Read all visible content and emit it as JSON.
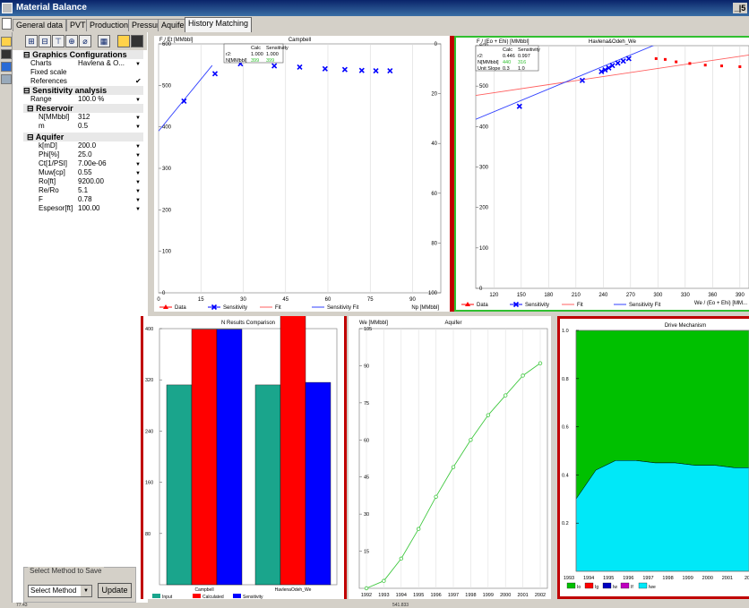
{
  "window": {
    "title": "Material Balance",
    "controls": "_|5"
  },
  "tabs": [
    "General data",
    "PVT",
    "Production",
    "Pressure",
    "Aquifer",
    "History Matching"
  ],
  "active_tab": 5,
  "toolbar_icons": [
    "stack-icon",
    "hierarchy-icon",
    "tree-icon",
    "network-icon",
    "eraser-icon",
    "gap",
    "grid-icon",
    "open-folder-icon",
    "save-icon"
  ],
  "left_toolbar_icons": [
    "new-icon",
    "open-icon",
    "save-icon",
    "monitor-icon",
    "network-icon"
  ],
  "properties": {
    "graphics_section": "Graphics Configurations",
    "charts_label": "Charts",
    "charts_value": "Havlena & O...",
    "fixed_scale_label": "Fixed scale",
    "references_label": "References",
    "sensitivity_section": "Sensitivity analysis",
    "range_label": "Range",
    "range_value": "100.0 %",
    "reservoir_section": "Reservoir",
    "reservoir": [
      {
        "k": "N[MMbbl]",
        "v": "312"
      },
      {
        "k": "m",
        "v": "0.5"
      }
    ],
    "aquifer_section": "Aquifer",
    "aquifer": [
      {
        "k": "k[mD]",
        "v": "200.0"
      },
      {
        "k": "Phi[%]",
        "v": "25.0"
      },
      {
        "k": "Ct[1/PSI]",
        "v": "7.00e-06"
      },
      {
        "k": "Muw[cp]",
        "v": "0.55"
      },
      {
        "k": "Ro[ft]",
        "v": "9200.00"
      },
      {
        "k": "Re/Ro",
        "v": "5.1"
      },
      {
        "k": "F",
        "v": "0.78"
      },
      {
        "k": "Espesor[ft]",
        "v": "100.00"
      }
    ]
  },
  "save": {
    "label": "Select Method to Save",
    "select_value": "Select Method",
    "button": "Update"
  },
  "status": {
    "left": "77.43",
    "mid": "541.833"
  },
  "chart_data": [
    {
      "type": "scatter",
      "title": "Campbell",
      "ylabel": "F / Et [MMbbl]",
      "xlabel": "Np [MMbbl]",
      "xlim": [
        0,
        100
      ],
      "ylim": [
        0,
        600
      ],
      "y2lim": [
        100,
        0
      ],
      "x_ticks": [
        "0",
        "15",
        "30",
        "45",
        "60",
        "75",
        "90"
      ],
      "y_ticks": [
        "0",
        "100",
        "200",
        "300",
        "400",
        "500",
        "600"
      ],
      "y2_ticks": [
        "100",
        "80",
        "60",
        "40",
        "20",
        "0"
      ],
      "stats": {
        "header": [
          "",
          "Calc",
          "Sensitivity"
        ],
        "rows": [
          [
            "r2:",
            "1.000",
            "1.000"
          ],
          [
            "N[MMbbl]",
            "399",
            "399"
          ]
        ]
      },
      "series": [
        {
          "name": "Data",
          "color": "#ff0000",
          "points": []
        },
        {
          "name": "Sensitivity",
          "color": "#0000ff",
          "points": [
            [
              9,
              462
            ],
            [
              20,
              528
            ],
            [
              29,
              552
            ],
            [
              41,
              547
            ],
            [
              50,
              544
            ],
            [
              59,
              540
            ],
            [
              66,
              538
            ],
            [
              72,
              536
            ],
            [
              77,
              535
            ],
            [
              82,
              535
            ]
          ]
        },
        {
          "name": "Fit",
          "color": "#ff6060",
          "points": []
        },
        {
          "name": "Sensitivity Fit",
          "color": "#3040ff",
          "points": [
            [
              0,
              390
            ],
            [
              19,
              548
            ]
          ]
        }
      ]
    },
    {
      "type": "scatter",
      "title": "Havlena&Odeh_We",
      "ylabel": "F / (Eo + Ehi) [MMbbl]",
      "xlabel": "We / (Eo + Ehi) [MM...",
      "xlim": [
        100,
        400
      ],
      "ylim": [
        0,
        600
      ],
      "x_ticks": [
        "120",
        "150",
        "180",
        "210",
        "240",
        "270",
        "300",
        "330",
        "360",
        "390"
      ],
      "y_ticks": [
        "0",
        "100",
        "200",
        "300",
        "400",
        "500",
        "600"
      ],
      "stats": {
        "header": [
          "",
          "Calc",
          "Sensitivity"
        ],
        "rows": [
          [
            "r2:",
            "0.446",
            "0.997"
          ],
          [
            "N[MMbbl]",
            "440",
            "316"
          ],
          [
            "Unit Slope",
            "0.3",
            "1.0"
          ]
        ]
      },
      "series": [
        {
          "name": "Data",
          "color": "#ff0000",
          "points": [
            [
              298,
              568
            ],
            [
              308,
              566
            ],
            [
              320,
              560
            ],
            [
              335,
              556
            ],
            [
              352,
              552
            ],
            [
              370,
              550
            ],
            [
              390,
              548
            ]
          ]
        },
        {
          "name": "Sensitivity",
          "color": "#0000ff",
          "points": [
            [
              148,
              450
            ],
            [
              217,
              514
            ],
            [
              238,
              536
            ],
            [
              242,
              540
            ],
            [
              246,
              545
            ],
            [
              250,
              551
            ],
            [
              256,
              557
            ],
            [
              262,
              562
            ],
            [
              268,
              568
            ]
          ]
        },
        {
          "name": "Fit",
          "color": "#ff6060",
          "points": [
            [
              100,
              477
            ],
            [
              400,
              577
            ]
          ]
        },
        {
          "name": "Sensitivity Fit",
          "color": "#3040ff",
          "points": [
            [
              100,
              418
            ],
            [
              300,
              605
            ]
          ]
        }
      ]
    },
    {
      "type": "bar",
      "title": "N Results Comparison",
      "ylim": [
        0,
        400
      ],
      "y_ticks": [
        "80",
        "160",
        "240",
        "320",
        "400"
      ],
      "categories": [
        "Campbell",
        "HavlenaOdeh_We"
      ],
      "series": [
        {
          "name": "Input",
          "color": "#1aa58c",
          "values": [
            312,
            312
          ]
        },
        {
          "name": "Calculated",
          "color": "#ff0000",
          "values": [
            399,
            440
          ]
        },
        {
          "name": "Sensitivity",
          "color": "#0000ff",
          "values": [
            399,
            316
          ]
        }
      ]
    },
    {
      "type": "line",
      "title": "Aquifer",
      "ylabel": "We [MMbbl]",
      "ylim": [
        0,
        105
      ],
      "categories": [
        "1992",
        "1993",
        "1994",
        "1995",
        "1996",
        "1997",
        "1998",
        "1999",
        "2000",
        "2001",
        "2002"
      ],
      "y_ticks": [
        "15",
        "30",
        "45",
        "60",
        "75",
        "90",
        "105"
      ],
      "series": [
        {
          "name": "We",
          "color": "#40c840",
          "values": [
            0,
            3,
            12,
            24,
            37,
            49,
            60,
            70,
            78,
            86,
            91
          ]
        }
      ]
    },
    {
      "type": "area",
      "title": "Drive Mechanism",
      "ylim": [
        0,
        1
      ],
      "y_ticks": [
        "0.2",
        "0.4",
        "0.6",
        "0.8",
        "1.0"
      ],
      "categories": [
        "1993",
        "1994",
        "1995",
        "1996",
        "1997",
        "1998",
        "1999",
        "2000",
        "2001",
        "20"
      ],
      "series": [
        {
          "name": "Io",
          "color": "#00c000",
          "values": [
            0.7,
            0.58,
            0.54,
            0.54,
            0.55,
            0.55,
            0.56,
            0.56,
            0.57,
            0.57
          ]
        },
        {
          "name": "Ig",
          "color": "#ff0000",
          "values": [
            0,
            0,
            0,
            0,
            0,
            0,
            0,
            0,
            0,
            0
          ]
        },
        {
          "name": "Iw",
          "color": "#0000c0",
          "values": [
            0,
            0,
            0,
            0,
            0,
            0,
            0,
            0,
            0,
            0
          ]
        },
        {
          "name": "If",
          "color": "#c000c0",
          "values": [
            0,
            0,
            0,
            0,
            0,
            0,
            0,
            0,
            0,
            0
          ]
        },
        {
          "name": "Iwe",
          "color": "#00e8f8",
          "values": [
            0.3,
            0.42,
            0.46,
            0.46,
            0.45,
            0.45,
            0.44,
            0.44,
            0.43,
            0.43
          ]
        }
      ]
    }
  ]
}
